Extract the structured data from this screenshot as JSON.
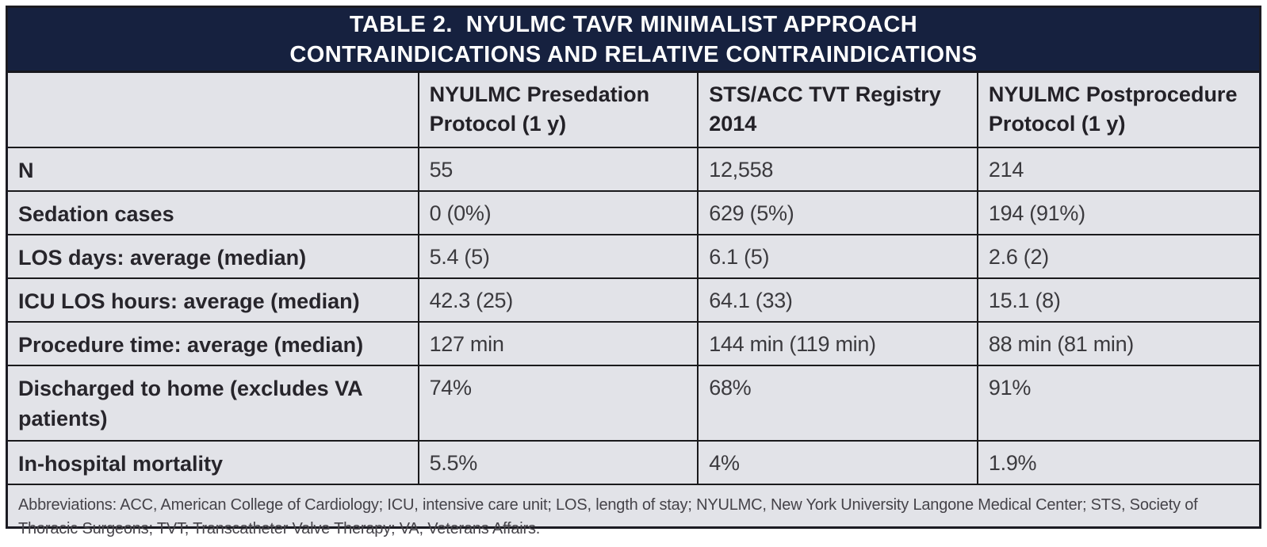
{
  "title": {
    "line1": "TABLE 2.  NYULMC TAVR MINIMALIST APPROACH",
    "line2": "CONTRAINDICATIONS AND RELATIVE CONTRAINDICATIONS"
  },
  "table": {
    "columns": [
      "",
      "NYULMC Presedation Protocol (1 y)",
      "STS/ACC TVT Registry 2014",
      "NYULMC Postprocedure Protocol (1 y)"
    ],
    "rows": [
      {
        "label": "N",
        "values": [
          "55",
          "12,558",
          "214"
        ]
      },
      {
        "label": "Sedation cases",
        "values": [
          "0 (0%)",
          "629 (5%)",
          "194 (91%)"
        ]
      },
      {
        "label": "LOS days: average (median)",
        "values": [
          "5.4 (5)",
          "6.1 (5)",
          "2.6 (2)"
        ]
      },
      {
        "label": "ICU LOS hours: average (median)",
        "values": [
          "42.3 (25)",
          "64.1 (33)",
          "15.1 (8)"
        ]
      },
      {
        "label": "Procedure time: average (median)",
        "values": [
          "127 min",
          "144 min (119 min)",
          "88 min (81 min)"
        ]
      },
      {
        "label": "Discharged to home (excludes VA patients)",
        "values": [
          "74%",
          "68%",
          "91%"
        ]
      },
      {
        "label": "In-hospital mortality",
        "values": [
          "5.5%",
          "4%",
          "1.9%"
        ]
      }
    ],
    "footnote": "Abbreviations: ACC, American College of Cardiology; ICU, intensive care unit; LOS, length of stay; NYULMC, New York University Langone Medical Center; STS, Society of Thoracic Surgeons; TVT; Transcatheter Valve Therapy; VA, Veterans Affairs."
  },
  "colors": {
    "title_bg": "#16213f",
    "title_text": "#ffffff",
    "cell_bg": "#e2e3e8",
    "grid_line": "#1a1a1c",
    "label_text": "#27252b",
    "value_text": "#3b3a3e"
  }
}
